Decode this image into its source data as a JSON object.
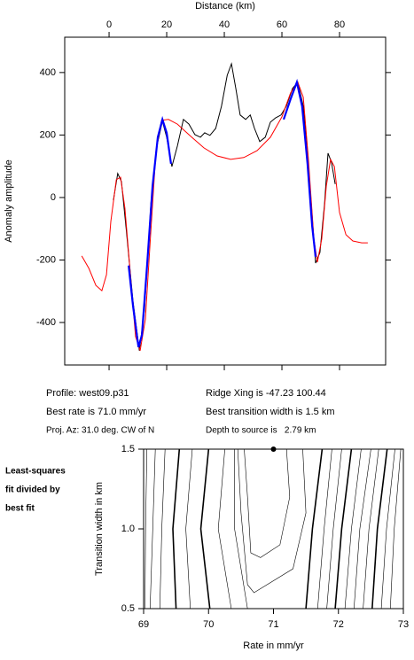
{
  "chart_data": [
    {
      "type": "line",
      "xlabel": "Distance (km)",
      "ylabel": "Anomaly amplitude",
      "xaxis": "top",
      "xlim": [
        -15.4,
        96
      ],
      "ylim": [
        -536,
        513
      ],
      "xticks": [
        0,
        20,
        40,
        60,
        80
      ],
      "yticks": [
        -400,
        -200,
        0,
        200,
        400
      ],
      "series": [
        {
          "color": "#000000",
          "width": 1,
          "x": [
            1.5,
            3,
            4.3,
            6,
            8.3,
            10.5,
            12.3,
            14.5,
            16.6,
            18.5,
            20,
            21.8,
            23.7,
            25.8,
            27.7,
            29.8,
            31.7,
            33.2,
            35,
            37,
            39,
            41,
            42.5,
            44,
            45.5,
            47.4,
            49,
            50.5,
            52.3,
            54.2,
            56,
            57.8,
            59.7,
            61.5,
            63.7,
            65.5,
            67.4,
            69.5,
            71.7,
            73.2,
            74.8,
            76,
            77.2,
            78.5
          ],
          "values": [
            -9,
            77,
            51,
            -105,
            -332,
            -490,
            -360,
            -20,
            165,
            244,
            193,
            99,
            165,
            250,
            235,
            201,
            193,
            207,
            199,
            221,
            292,
            391,
            428,
            349,
            264,
            250,
            264,
            221,
            179,
            193,
            241,
            255,
            264,
            292,
            349,
            369,
            292,
            65,
            -210,
            -176,
            -20,
            142,
            113,
            43
          ]
        },
        {
          "color": "#ff0000",
          "width": 1,
          "x": [
            -9.5,
            -7,
            -4.6,
            -2.5,
            -0.9,
            0.6,
            2.5,
            4,
            5.5,
            7.4,
            9.2,
            10.8,
            12.6,
            14.5,
            16.3,
            18.2,
            20.6,
            23.7,
            28.3,
            32.9,
            37.5,
            42.2,
            46.8,
            51.4,
            56,
            60,
            63,
            65.5,
            67.4,
            69.2,
            71.1,
            72.3,
            73.8,
            75.4,
            76.9,
            78.2,
            80,
            82.2,
            84.6,
            87.7,
            89.8
          ],
          "values": [
            -187,
            -227,
            -281,
            -298,
            -247,
            -77,
            57,
            65,
            -34,
            -247,
            -445,
            -490,
            -389,
            -105,
            150,
            247,
            250,
            235,
            196,
            159,
            133,
            122,
            128,
            150,
            193,
            258,
            335,
            369,
            321,
            122,
            -133,
            -207,
            -133,
            37,
            122,
            99,
            -48,
            -119,
            -139,
            -145,
            -145
          ]
        },
        {
          "color": "#0000ff",
          "width": 2.2,
          "x": [
            6.8,
            8.3,
            10.2,
            11.4,
            13.2,
            15.1,
            16.9,
            18.5,
            20,
            21.5,
            null,
            60.6,
            63,
            65.2,
            67,
            68.9,
            70.5,
            71.7
          ],
          "values": [
            -218,
            -346,
            -479,
            -440,
            -218,
            37,
            193,
            250,
            207,
            108,
            null,
            250,
            315,
            369,
            292,
            108,
            -91,
            -190
          ]
        }
      ]
    },
    {
      "type": "contour",
      "xlabel": "Rate in mm/yr",
      "ylabel": "Transition width in km",
      "xlim": [
        69,
        73
      ],
      "ylim": [
        0.5,
        1.5
      ],
      "xticks": [
        69,
        70,
        71,
        72,
        73
      ],
      "yticks": [
        {
          "value": 0.5,
          "label": "0.5"
        },
        {
          "value": 1.0,
          "label": "1.0"
        },
        {
          "value": 1.5,
          "label": "1.5"
        }
      ],
      "marker": {
        "x": 71.0,
        "y": 1.5
      },
      "contours": [
        {
          "bold": false,
          "x": [
            69.05,
            69.03,
            69.02
          ],
          "y": [
            1.5,
            1.0,
            0.5
          ]
        },
        {
          "bold": false,
          "x": [
            69.18,
            69.14,
            69.1
          ],
          "y": [
            1.5,
            1.0,
            0.5
          ]
        },
        {
          "bold": false,
          "x": [
            69.33,
            69.28,
            69.25
          ],
          "y": [
            1.5,
            1.0,
            0.5
          ]
        },
        {
          "bold": true,
          "x": [
            69.55,
            69.45,
            69.5
          ],
          "y": [
            1.5,
            1.0,
            0.5
          ]
        },
        {
          "bold": false,
          "x": [
            69.75,
            69.65,
            69.72
          ],
          "y": [
            1.5,
            1.0,
            0.5
          ]
        },
        {
          "bold": true,
          "x": [
            70.0,
            69.88,
            70.02
          ],
          "y": [
            1.5,
            1.0,
            0.5
          ]
        },
        {
          "bold": false,
          "x": [
            70.25,
            70.15,
            70.35
          ],
          "y": [
            1.5,
            1.0,
            0.5
          ]
        },
        {
          "bold": false,
          "x": [
            70.4,
            70.4,
            70.6
          ],
          "y": [
            1.5,
            1.0,
            0.5
          ]
        },
        {
          "bold": false,
          "x": [
            70.45,
            70.5,
            70.6,
            70.7,
            71.3,
            71.5,
            71.45
          ],
          "y": [
            1.5,
            1.1,
            0.65,
            0.6,
            0.75,
            1.1,
            1.5
          ]
        },
        {
          "bold": false,
          "x": [
            70.55,
            70.6,
            70.65,
            70.8,
            71.1,
            71.25,
            71.2
          ],
          "y": [
            1.5,
            1.2,
            0.85,
            0.82,
            0.9,
            1.2,
            1.5
          ]
        },
        {
          "bold": true,
          "x": [
            71.75,
            71.6,
            71.5
          ],
          "y": [
            1.5,
            1.0,
            0.5
          ]
        },
        {
          "bold": false,
          "x": [
            71.9,
            71.78,
            71.68
          ],
          "y": [
            1.5,
            1.0,
            0.5
          ]
        },
        {
          "bold": false,
          "x": [
            72.05,
            71.92,
            71.82
          ],
          "y": [
            1.5,
            1.0,
            0.5
          ]
        },
        {
          "bold": true,
          "x": [
            72.2,
            72.05,
            71.95
          ],
          "y": [
            1.5,
            1.0,
            0.5
          ]
        },
        {
          "bold": false,
          "x": [
            72.35,
            72.2,
            72.1
          ],
          "y": [
            1.5,
            1.0,
            0.5
          ]
        },
        {
          "bold": false,
          "x": [
            72.5,
            72.33,
            72.24
          ],
          "y": [
            1.5,
            1.0,
            0.5
          ]
        },
        {
          "bold": false,
          "x": [
            72.62,
            72.47,
            72.38
          ],
          "y": [
            1.5,
            1.0,
            0.5
          ]
        },
        {
          "bold": true,
          "x": [
            72.75,
            72.6,
            72.52
          ],
          "y": [
            1.5,
            1.0,
            0.5
          ]
        },
        {
          "bold": false,
          "x": [
            72.87,
            72.74,
            72.66
          ],
          "y": [
            1.5,
            1.0,
            0.5
          ]
        },
        {
          "bold": false,
          "x": [
            72.96,
            72.86,
            72.8
          ],
          "y": [
            1.5,
            1.0,
            0.5
          ]
        }
      ]
    }
  ],
  "info": {
    "profile": "Profile: west09.p31",
    "rate": "Best rate is 71.0 mm/yr",
    "azimuth": "Proj. Az: 31.0 deg. CW of N",
    "ridge": "Ridge Xing is -47.23 100.44",
    "width": "Best transition width is 1.5 km",
    "depth": "Depth to source is   2.79 km"
  },
  "note": [
    "Least-squares",
    "fit divided by",
    "best fit"
  ]
}
